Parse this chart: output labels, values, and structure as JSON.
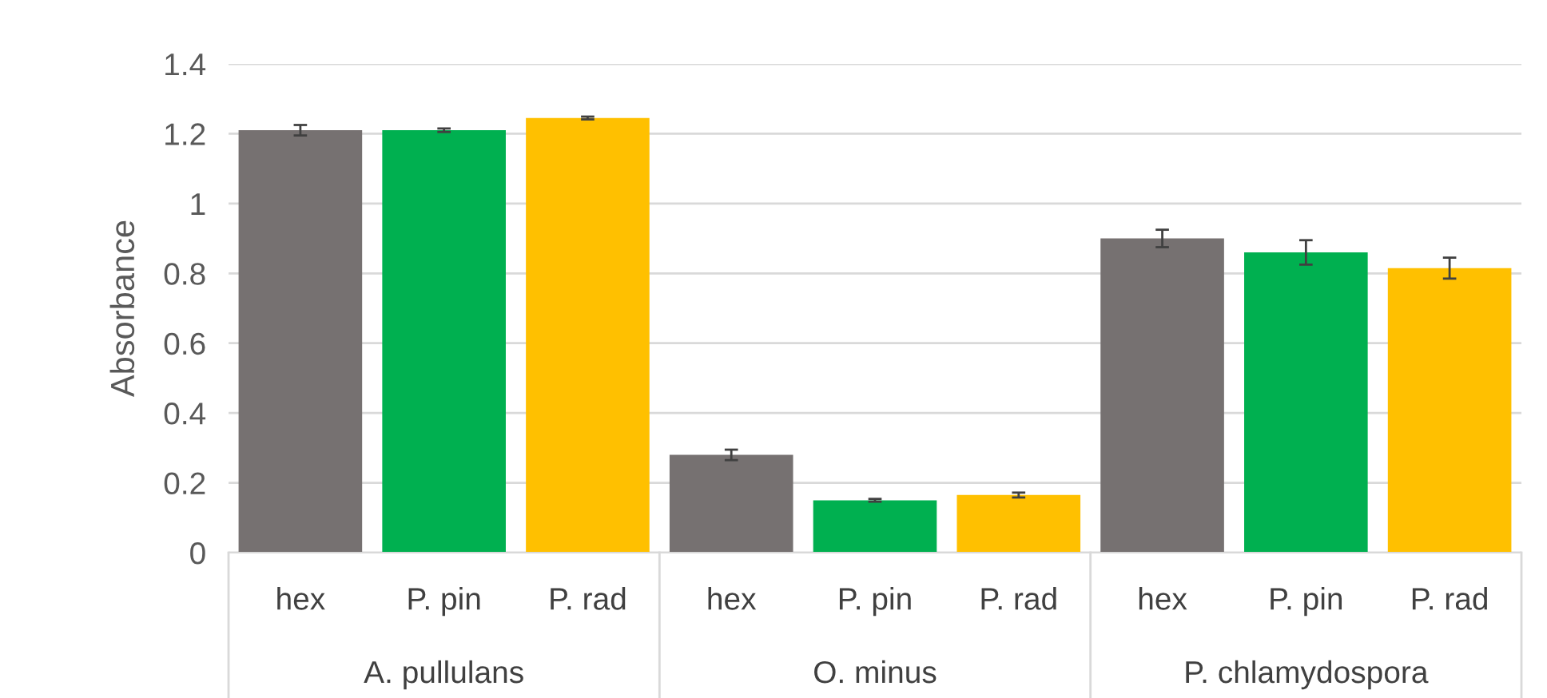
{
  "chart_data": {
    "type": "bar",
    "ylabel": "Absorbance",
    "categories": [
      "A. pullulans",
      "O. minus",
      "P. chlamydospora"
    ],
    "series": [
      {
        "name": "hex",
        "color": "#767171",
        "values": [
          1.21,
          0.28,
          0.9
        ],
        "errors": [
          0.015,
          0.015,
          0.025
        ]
      },
      {
        "name": "P. pin",
        "color": "#00b050",
        "values": [
          1.21,
          0.15,
          0.86
        ],
        "errors": [
          0.005,
          0.004,
          0.035
        ]
      },
      {
        "name": "P. rad",
        "color": "#ffc000",
        "values": [
          1.245,
          0.165,
          0.815
        ],
        "errors": [
          0.004,
          0.007,
          0.03
        ]
      }
    ],
    "ylim": [
      0,
      1.4
    ],
    "yticks": [
      0,
      0.2,
      0.4,
      0.6,
      0.8,
      1,
      1.2,
      1.4
    ],
    "grid": "y",
    "legend": false
  }
}
